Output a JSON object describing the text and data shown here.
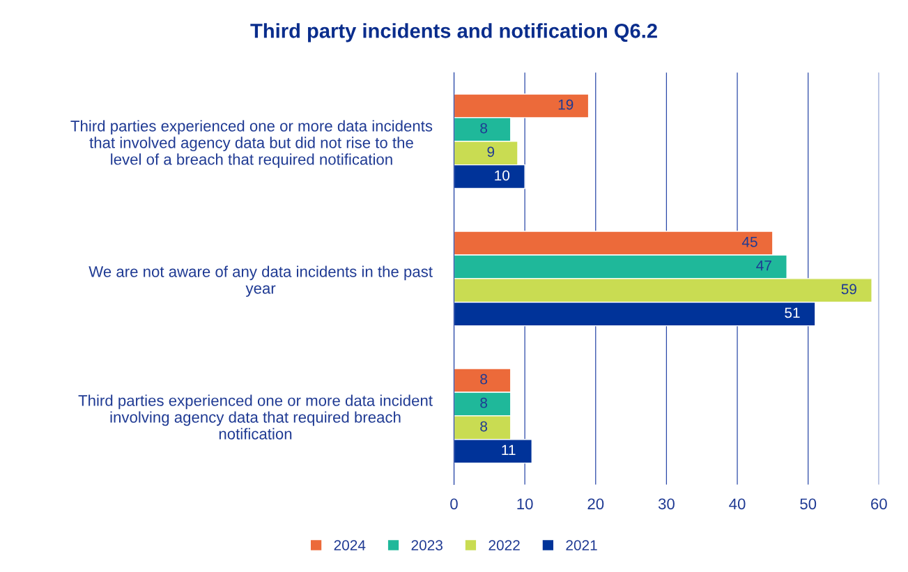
{
  "chart_data": {
    "type": "bar",
    "orientation": "horizontal",
    "title": "Third party incidents and notification Q6.2",
    "categories": [
      "Third parties experienced one or more data incidents that involved agency data but did not rise to the level of a breach that required notification",
      "We are not aware of any data incidents in the past year",
      "Third parties experienced one or more data incident involving agency data that required breach notification"
    ],
    "series": [
      {
        "name": "2024",
        "color": "#ec6a3a",
        "values": [
          19,
          45,
          8
        ]
      },
      {
        "name": "2023",
        "color": "#1fb89a",
        "values": [
          8,
          47,
          8
        ]
      },
      {
        "name": "2022",
        "color": "#c9dc52",
        "values": [
          9,
          59,
          8
        ]
      },
      {
        "name": "2021",
        "color": "#003399",
        "values": [
          10,
          51,
          11
        ]
      }
    ],
    "xlim": [
      0,
      60
    ],
    "xticks": [
      0,
      10,
      20,
      30,
      40,
      50,
      60
    ],
    "grid": "x",
    "legend": "bottom",
    "data_labels": true
  }
}
